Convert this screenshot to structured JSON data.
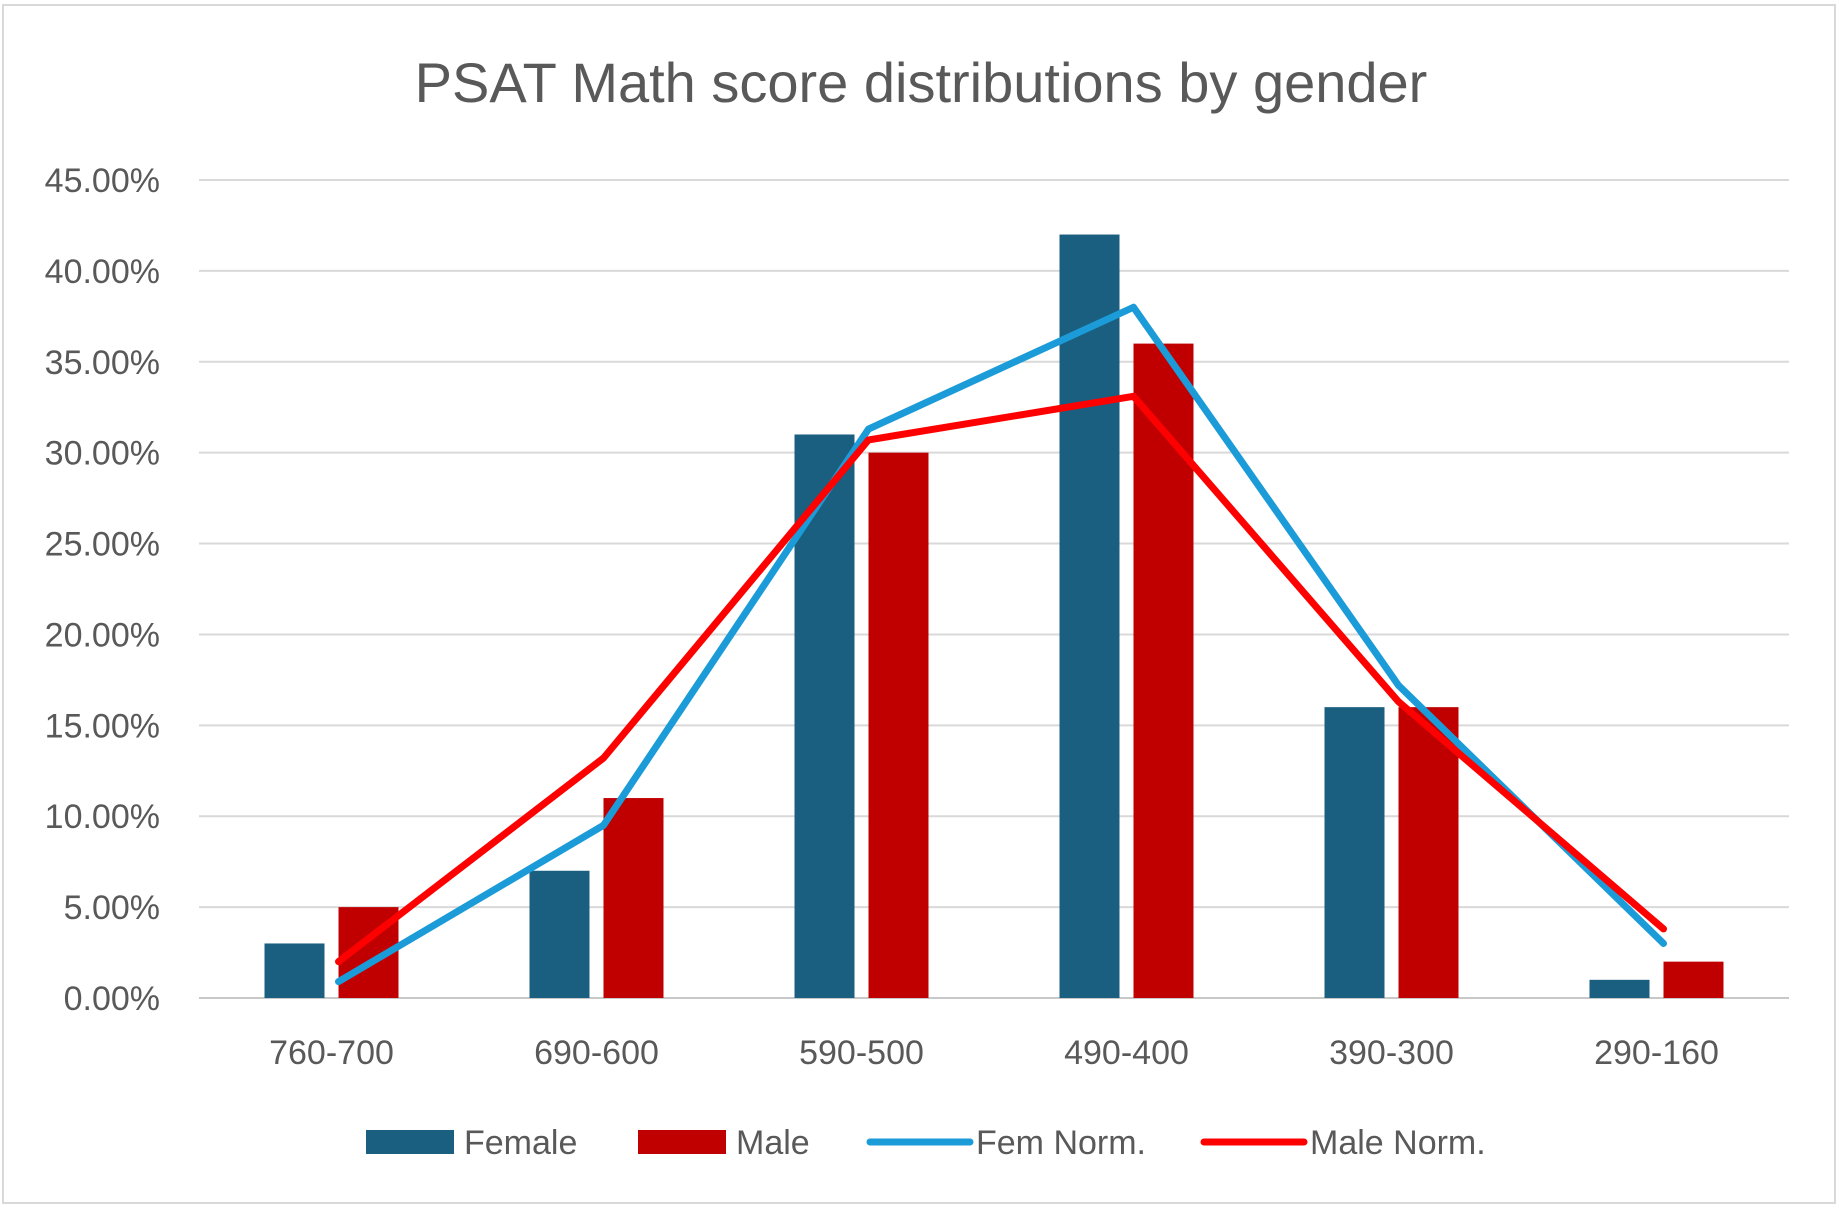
{
  "chart_data": {
    "type": "bar",
    "title": "PSAT Math score distributions by gender",
    "categories": [
      "760-700",
      "690-600",
      "590-500",
      "490-400",
      "390-300",
      "290-160"
    ],
    "y_tick_labels": [
      "0.00%",
      "5.00%",
      "10.00%",
      "15.00%",
      "20.00%",
      "25.00%",
      "30.00%",
      "35.00%",
      "40.00%",
      "45.00%"
    ],
    "ylim": [
      0,
      45
    ],
    "grid": true,
    "legend_position": "bottom",
    "series": [
      {
        "name": "Female",
        "kind": "bar",
        "color": "#1a5e80",
        "values": [
          3,
          7,
          31,
          42,
          16,
          1
        ]
      },
      {
        "name": "Male",
        "kind": "bar",
        "color": "#c00000",
        "values": [
          5,
          11,
          30,
          36,
          16,
          2
        ]
      },
      {
        "name": "Fem Norm.",
        "kind": "line",
        "color": "#1b9bd7",
        "values": [
          0.9,
          9.5,
          31.3,
          38.0,
          17.2,
          3.0
        ]
      },
      {
        "name": "Male Norm.",
        "kind": "line",
        "color": "#ff0000",
        "values": [
          2.0,
          13.2,
          30.7,
          33.1,
          16.3,
          3.8
        ]
      }
    ]
  }
}
